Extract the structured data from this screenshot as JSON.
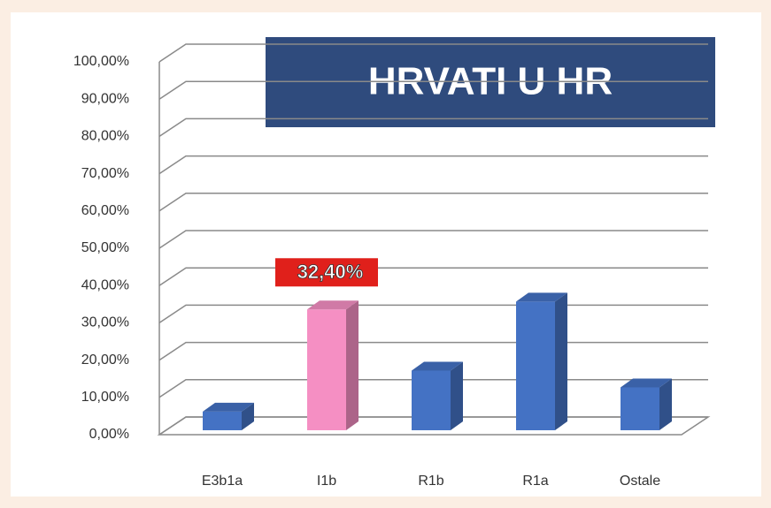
{
  "chart_data": {
    "type": "bar3d",
    "title": "HRVATI U HR",
    "categories": [
      "E3b1a",
      "I1b",
      "R1b",
      "R1a",
      "Ostale"
    ],
    "values": [
      5,
      32.4,
      16,
      34.5,
      11.5
    ],
    "value_labels": [
      null,
      "32,40%",
      null,
      null,
      null
    ],
    "colors": [
      "#4472c4",
      "#f58fc3",
      "#4472c4",
      "#4472c4",
      "#4472c4"
    ],
    "ylim": [
      0,
      100
    ],
    "yticks": [
      {
        "value": 0,
        "label": "0,00%"
      },
      {
        "value": 10,
        "label": "10,00%"
      },
      {
        "value": 20,
        "label": "20,00%"
      },
      {
        "value": 30,
        "label": "30,00%"
      },
      {
        "value": 40,
        "label": "40,00%"
      },
      {
        "value": 50,
        "label": "50,00%"
      },
      {
        "value": 60,
        "label": "60,00%"
      },
      {
        "value": 70,
        "label": "70,00%"
      },
      {
        "value": 80,
        "label": "80,00%"
      },
      {
        "value": 90,
        "label": "90,00%"
      },
      {
        "value": 100,
        "label": "100,00%"
      }
    ],
    "grid": true
  }
}
